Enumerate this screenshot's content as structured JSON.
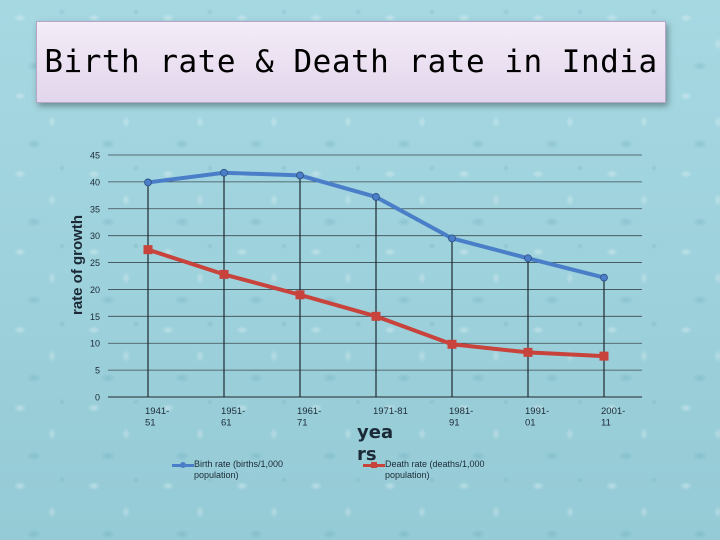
{
  "title": "Birth rate & Death rate in India",
  "chart_data": {
    "type": "line",
    "categories": [
      "1941-51",
      "1951-61",
      "1961-71",
      "1971-81",
      "1981-91",
      "1991-01",
      "2001-11"
    ],
    "tick_labels": [
      "1941- 51",
      "1951- 61",
      "1961- 71",
      "1971-81",
      "1981- 91",
      "1991- 01",
      "2001- 11"
    ],
    "series": [
      {
        "name": "Birth rate (births/1,000 population)",
        "values": [
          39.9,
          41.7,
          41.2,
          37.2,
          29.5,
          25.8,
          22.2
        ],
        "color": "#4a7ec8",
        "marker": "circle"
      },
      {
        "name": "Death rate (deaths/1,000 population)",
        "values": [
          27.4,
          22.8,
          19.0,
          15.0,
          9.8,
          8.3,
          7.6
        ],
        "color": "#c8433c",
        "marker": "square"
      }
    ],
    "xlabel": "years",
    "ylabel": "rate of growth",
    "ylim": [
      0,
      45
    ],
    "yticks": [
      0,
      5,
      10,
      15,
      20,
      25,
      30,
      35,
      40,
      45
    ],
    "grid": true,
    "legend": "bottom"
  }
}
